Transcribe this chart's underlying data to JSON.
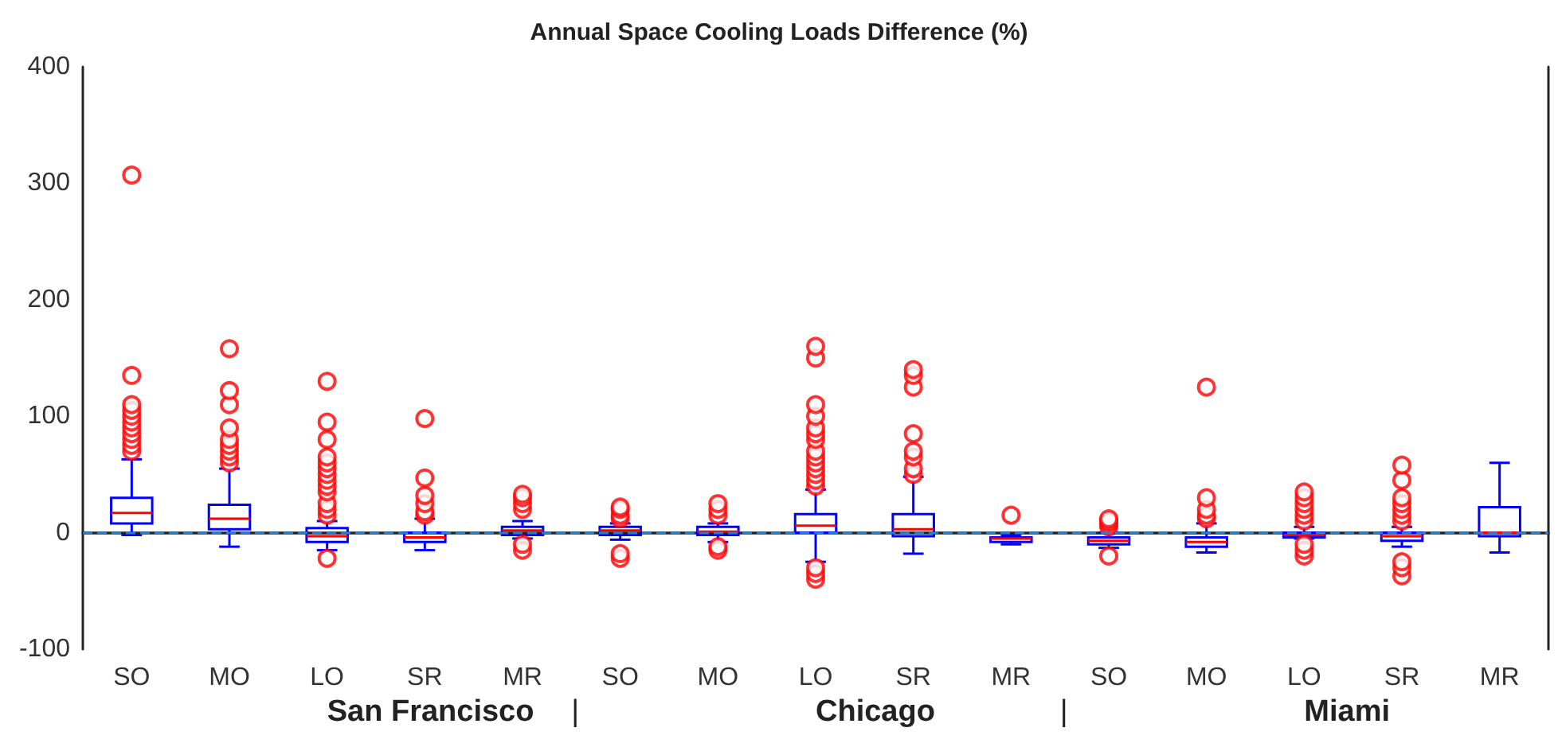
{
  "chart_data": {
    "type": "box",
    "title": "Annual Space Cooling Loads Difference (%)",
    "categories": [
      "SO",
      "MO",
      "LO",
      "SR",
      "MR",
      "SO",
      "MO",
      "LO",
      "SR",
      "MR",
      "SO",
      "MO",
      "LO",
      "SR",
      "MR"
    ],
    "series": [
      {
        "color": "#0000ff",
        "boxes": [
          {
            "low": -2,
            "q1": 8,
            "median": 17,
            "q3": 30,
            "high": 63,
            "outliers": [
              70,
              75,
              80,
              85,
              90,
              95,
              100,
              105,
              110,
              135,
              307
            ]
          },
          {
            "low": -12,
            "q1": 3,
            "median": 12,
            "q3": 24,
            "high": 55,
            "outliers": [
              60,
              65,
              70,
              75,
              80,
              90,
              110,
              122,
              158
            ]
          },
          {
            "low": -15,
            "q1": -8,
            "median": -3,
            "q3": 4,
            "high": 10,
            "outliers": [
              -22,
              15,
              20,
              25,
              35,
              40,
              45,
              50,
              55,
              60,
              65,
              80,
              95,
              130
            ]
          },
          {
            "low": -15,
            "q1": -8,
            "median": -4,
            "q3": 0,
            "high": 12,
            "outliers": [
              15,
              18,
              25,
              32,
              47,
              98
            ]
          },
          {
            "low": -5,
            "q1": -2,
            "median": 2,
            "q3": 5,
            "high": 10,
            "outliers": [
              -15,
              -10,
              20,
              25,
              30,
              33
            ]
          },
          {
            "low": -6,
            "q1": -2,
            "median": 2,
            "q3": 5,
            "high": 8,
            "outliers": [
              -22,
              -18,
              12,
              15,
              20,
              22
            ]
          },
          {
            "low": -8,
            "q1": -2,
            "median": 1,
            "q3": 5,
            "high": 8,
            "outliers": [
              -15,
              -12,
              15,
              20,
              25
            ]
          },
          {
            "low": -25,
            "q1": 0,
            "median": 6,
            "q3": 16,
            "high": 37,
            "outliers": [
              -40,
              -35,
              -30,
              40,
              45,
              50,
              55,
              60,
              65,
              70,
              80,
              85,
              90,
              100,
              110,
              150,
              160
            ]
          },
          {
            "low": -18,
            "q1": -3,
            "median": 3,
            "q3": 16,
            "high": 48,
            "outliers": [
              50,
              55,
              65,
              70,
              85,
              125,
              135,
              140
            ]
          },
          {
            "low": -10,
            "q1": -8,
            "median": -5,
            "q3": -4,
            "high": -2,
            "outliers": [
              15
            ]
          },
          {
            "low": -13,
            "q1": -10,
            "median": -7,
            "q3": -4,
            "high": 0,
            "outliers": [
              -20,
              5,
              8,
              10,
              12
            ]
          },
          {
            "low": -17,
            "q1": -12,
            "median": -8,
            "q3": -4,
            "high": 8,
            "outliers": [
              12,
              15,
              20,
              30,
              125
            ]
          },
          {
            "low": -5,
            "q1": -4,
            "median": -2,
            "q3": 0,
            "high": 5,
            "outliers": [
              -20,
              -15,
              -10,
              10,
              15,
              20,
              25,
              30,
              35
            ]
          },
          {
            "low": -12,
            "q1": -7,
            "median": -3,
            "q3": 0,
            "high": 5,
            "outliers": [
              -37,
              -30,
              -25,
              10,
              15,
              20,
              25,
              30,
              45,
              58
            ]
          },
          {
            "low": -17,
            "q1": -3,
            "median": 0,
            "q3": 22,
            "high": 60
          }
        ]
      }
    ],
    "ylim": [
      -100,
      400
    ],
    "yticks": [
      -100,
      0,
      100,
      200,
      300,
      400
    ],
    "ref_lines": [
      {
        "axis": "y",
        "value": 0,
        "color": "#1f7fd0",
        "line_style": "dashed"
      }
    ],
    "annotations": [
      "San Francisco",
      "|",
      "Chicago",
      "|",
      "Miami"
    ]
  }
}
